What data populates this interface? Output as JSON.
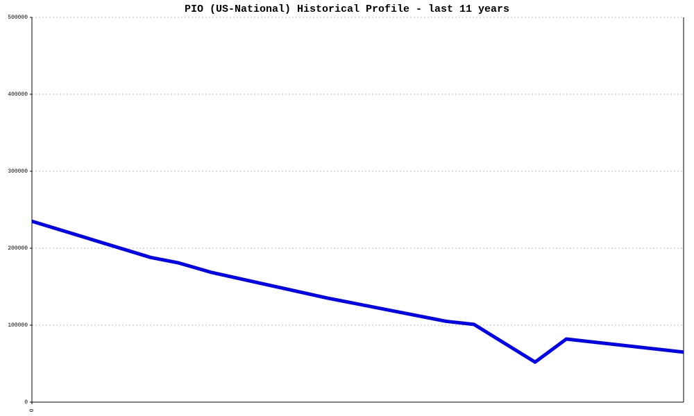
{
  "chart_data": {
    "type": "line",
    "title": "PIO (US-National) Historical Profile - last 11 years",
    "x": [
      0,
      171,
      211,
      259,
      427,
      512,
      597,
      637,
      725,
      770,
      939
    ],
    "series": [
      {
        "name": "PIO",
        "color": "#0000ee",
        "values": [
          235000,
          188000,
          181000,
          168500,
          135000,
          120000,
          105000,
          101000,
          52000,
          82000,
          65000
        ]
      }
    ],
    "xlim": [
      0,
      939
    ],
    "xticks": [
      0
    ],
    "ylim": [
      0,
      500000
    ],
    "yticks": [
      0,
      100000,
      200000,
      300000,
      400000,
      500000
    ],
    "grid": true
  }
}
